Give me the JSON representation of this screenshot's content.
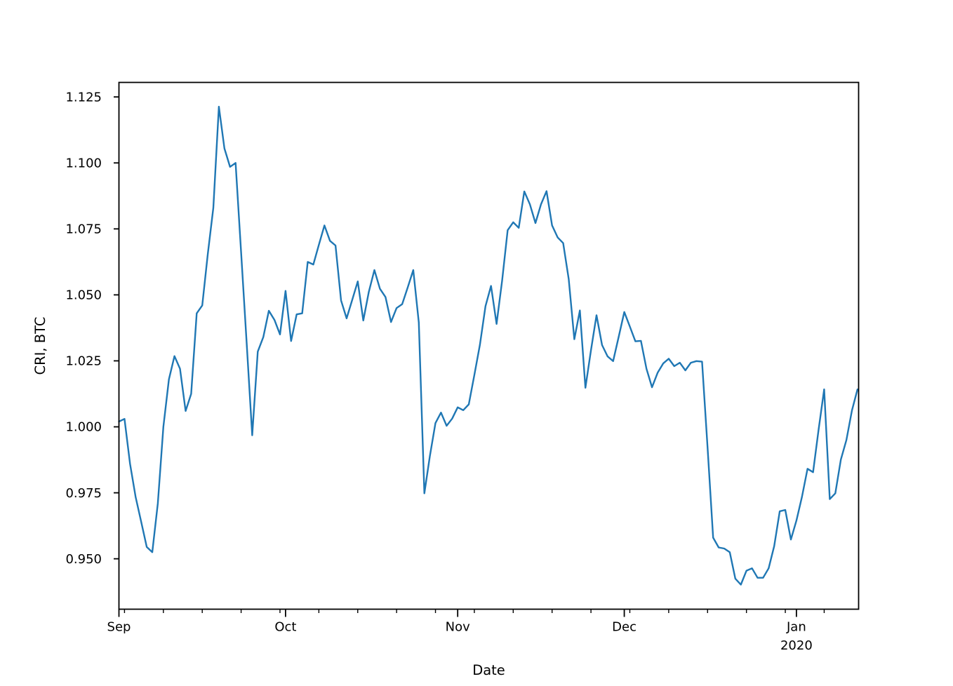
{
  "chart_data": {
    "type": "line",
    "title": "",
    "xlabel": "Date",
    "ylabel": "CRI, BTC",
    "series_name": "CRI, BTC",
    "line_color": "#1f77b4",
    "axis_color": "#000000",
    "background_color": "#ffffff",
    "grid": false,
    "legend": false,
    "frequency": "daily",
    "start_date": "2019-09-01",
    "end_date": "2020-01-12",
    "values": [
      1.002,
      1.003,
      0.986,
      0.9735,
      0.964,
      0.9545,
      0.9525,
      0.971,
      1.0,
      1.018,
      1.0268,
      1.022,
      1.006,
      1.0125,
      1.043,
      1.046,
      1.0655,
      1.083,
      1.1213,
      1.1055,
      1.0985,
      1.1,
      1.066,
      1.0317,
      0.9968,
      1.0285,
      1.034,
      1.044,
      1.0405,
      1.035,
      1.0515,
      1.0325,
      1.0426,
      1.043,
      1.0625,
      1.0615,
      1.069,
      1.0763,
      1.0705,
      1.0687,
      1.0479,
      1.0411,
      1.048,
      1.0551,
      1.0403,
      1.0512,
      1.0594,
      1.0523,
      1.0492,
      1.0397,
      1.045,
      1.0465,
      1.0528,
      1.0594,
      1.0395,
      0.9748,
      0.989,
      1.0014,
      1.0054,
      1.0004,
      1.0031,
      1.0074,
      1.0063,
      1.0085,
      1.0196,
      1.031,
      1.0457,
      1.0534,
      1.039,
      1.0554,
      1.0745,
      1.0775,
      1.0754,
      1.0892,
      1.0843,
      1.0772,
      1.0843,
      1.0893,
      1.0763,
      1.0718,
      1.0696,
      1.056,
      1.0332,
      1.0441,
      1.0148,
      1.029,
      1.0423,
      1.031,
      1.0267,
      1.0249,
      1.0342,
      1.0435,
      1.038,
      1.0324,
      1.0326,
      1.022,
      1.015,
      1.0205,
      1.024,
      1.0258,
      1.023,
      1.0243,
      1.0214,
      1.0243,
      1.0249,
      1.0247,
      0.992,
      0.958,
      0.9543,
      0.9539,
      0.9525,
      0.9425,
      0.9402,
      0.9455,
      0.9464,
      0.9428,
      0.9428,
      0.9464,
      0.9548,
      0.968,
      0.9685,
      0.9573,
      0.9645,
      0.9735,
      0.9841,
      0.9828,
      0.999,
      1.0142,
      0.9726,
      0.9748,
      0.9876,
      0.995,
      1.0062,
      1.0142
    ],
    "x_ticks": {
      "day_offsets": [
        0,
        30,
        61,
        91,
        122
      ],
      "labels": [
        "Sep",
        "Oct",
        "Nov",
        "Dec",
        "Jan"
      ],
      "year_label": "2020",
      "year_under": "Jan"
    },
    "minor_x_ticks": "weekly (Mondays)",
    "y_ticks": [
      0.95,
      0.975,
      1.0,
      1.025,
      1.05,
      1.075,
      1.1,
      1.125
    ],
    "y_tick_format": "3dp",
    "ylim": [
      0.9309,
      1.1305
    ],
    "xlim_days": [
      0,
      133.2
    ]
  }
}
